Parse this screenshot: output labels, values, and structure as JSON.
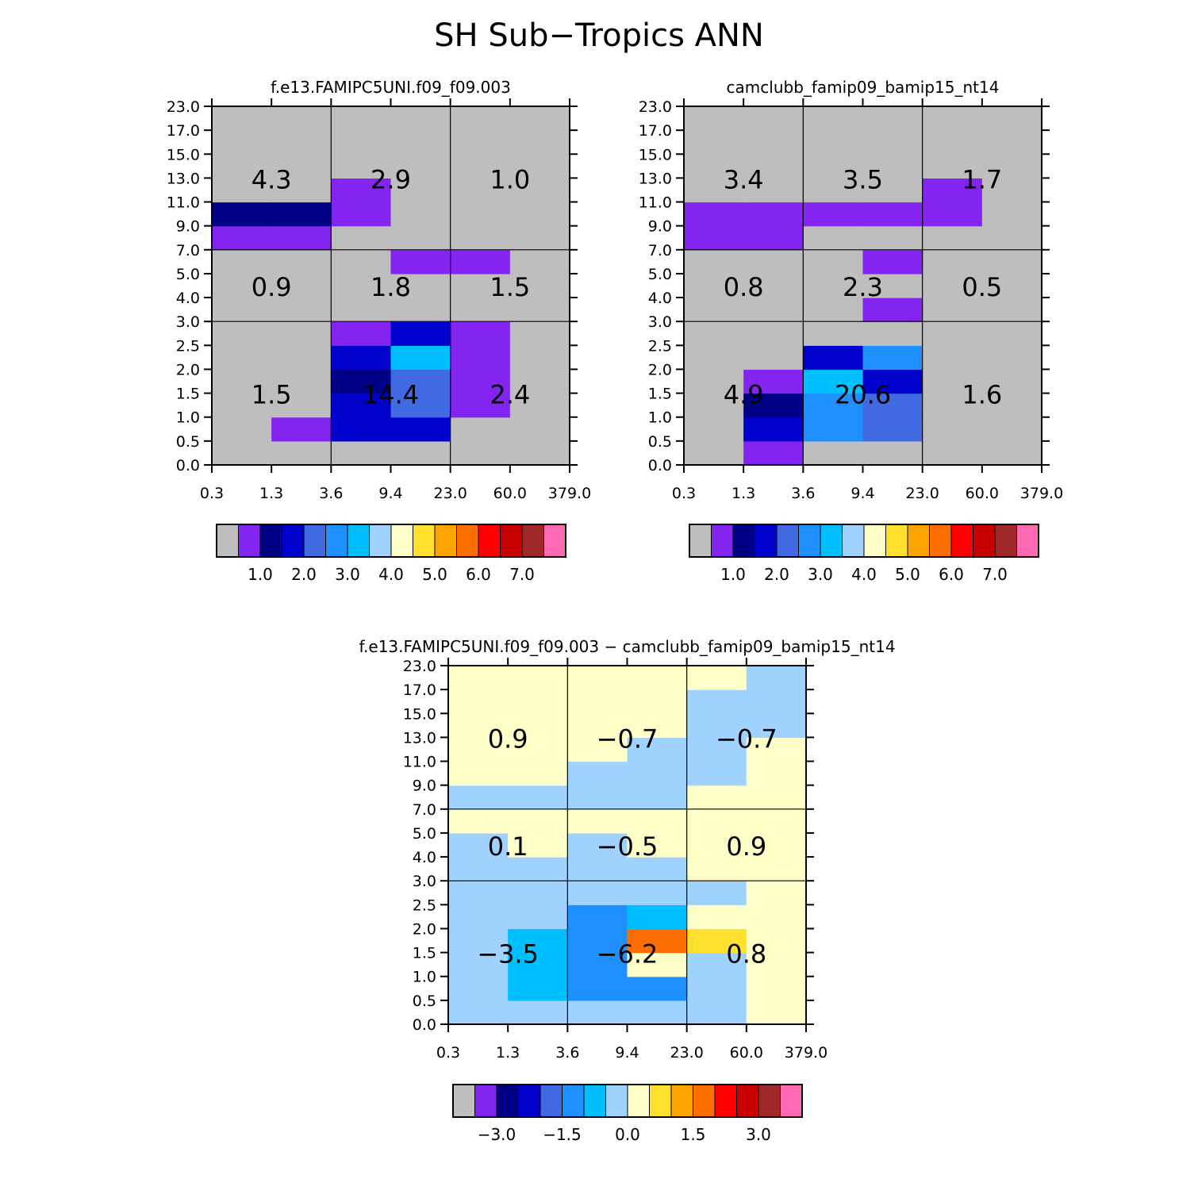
{
  "title": "SH Sub−Tropics ANN",
  "palette": [
    "#bebebe",
    "#8424f0",
    "#000087",
    "#0000cd",
    "#4169e1",
    "#1e90ff",
    "#00bfff",
    "#a0d2ff",
    "#ffffc8",
    "#ffe12d",
    "#ffa500",
    "#ff6e00",
    "#ff0000",
    "#c80000",
    "#a02828",
    "#ff69b4"
  ],
  "x_ticks": [
    "0.3",
    "1.3",
    "3.6",
    "9.4",
    "23.0",
    "60.0",
    "379.0"
  ],
  "y_ticks": [
    "0.0",
    "0.5",
    "1.0",
    "1.5",
    "2.0",
    "2.5",
    "3.0",
    "4.0",
    "5.0",
    "7.0",
    "9.0",
    "11.0",
    "13.0",
    "15.0",
    "17.0",
    "23.0"
  ],
  "chart_data": [
    {
      "type": "heatmap",
      "title": "f.e13.FAMIPC5UNI.f09_f09.003",
      "x_bins": [
        "0.3",
        "1.3",
        "3.6",
        "9.4",
        "23.0",
        "60.0",
        "379.0"
      ],
      "y_bins": [
        "0.0",
        "0.5",
        "1.0",
        "1.5",
        "2.0",
        "2.5",
        "3.0",
        "4.0",
        "5.0",
        "7.0",
        "9.0",
        "11.0",
        "13.0",
        "15.0",
        "17.0",
        "23.0"
      ],
      "levels": [
        "0.5",
        "1.0",
        "1.5",
        "2.0",
        "2.5",
        "3.0",
        "3.5",
        "4.0",
        "4.5",
        "5.0",
        "5.5",
        "6.0",
        "6.5",
        "7.0"
      ],
      "colorbar_labels": [
        "1.0",
        "2.0",
        "3.0",
        "4.0",
        "5.0",
        "6.0",
        "7.0"
      ],
      "grid": [
        [
          0,
          0,
          0,
          0,
          0,
          0
        ],
        [
          0,
          1,
          3,
          3,
          0,
          0
        ],
        [
          0,
          0,
          3,
          4,
          1,
          0
        ],
        [
          0,
          0,
          2,
          4,
          1,
          0
        ],
        [
          0,
          0,
          3,
          6,
          1,
          0
        ],
        [
          0,
          0,
          1,
          3,
          1,
          0
        ],
        [
          0,
          0,
          0,
          0,
          0,
          0
        ],
        [
          0,
          0,
          0,
          0,
          0,
          0
        ],
        [
          0,
          0,
          0,
          1,
          1,
          0
        ],
        [
          1,
          1,
          0,
          0,
          0,
          0
        ],
        [
          2,
          2,
          1,
          0,
          0,
          0
        ],
        [
          0,
          0,
          1,
          0,
          0,
          0
        ],
        [
          0,
          0,
          0,
          0,
          0,
          0
        ],
        [
          0,
          0,
          0,
          0,
          0,
          0
        ],
        [
          0,
          0,
          0,
          0,
          0,
          0
        ]
      ],
      "box_totals": {
        "high": [
          "4.3",
          "2.9",
          "1.0"
        ],
        "mid": [
          "0.9",
          "1.8",
          "1.5"
        ],
        "low": [
          "1.5",
          "14.4",
          "2.4"
        ]
      }
    },
    {
      "type": "heatmap",
      "title": "camclubb_famip09_bamip15_nt14",
      "x_bins": [
        "0.3",
        "1.3",
        "3.6",
        "9.4",
        "23.0",
        "60.0",
        "379.0"
      ],
      "y_bins": [
        "0.0",
        "0.5",
        "1.0",
        "1.5",
        "2.0",
        "2.5",
        "3.0",
        "4.0",
        "5.0",
        "7.0",
        "9.0",
        "11.0",
        "13.0",
        "15.0",
        "17.0",
        "23.0"
      ],
      "levels": [
        "0.5",
        "1.0",
        "1.5",
        "2.0",
        "2.5",
        "3.0",
        "3.5",
        "4.0",
        "4.5",
        "5.0",
        "5.5",
        "6.0",
        "6.5",
        "7.0"
      ],
      "colorbar_labels": [
        "1.0",
        "2.0",
        "3.0",
        "4.0",
        "5.0",
        "6.0",
        "7.0"
      ],
      "grid": [
        [
          0,
          1,
          0,
          0,
          0,
          0
        ],
        [
          0,
          3,
          5,
          4,
          0,
          0
        ],
        [
          0,
          2,
          5,
          4,
          0,
          0
        ],
        [
          0,
          1,
          6,
          3,
          0,
          0
        ],
        [
          0,
          0,
          3,
          5,
          0,
          0
        ],
        [
          0,
          0,
          0,
          0,
          0,
          0
        ],
        [
          0,
          0,
          0,
          1,
          0,
          0
        ],
        [
          0,
          0,
          0,
          0,
          0,
          0
        ],
        [
          0,
          0,
          0,
          1,
          0,
          0
        ],
        [
          1,
          1,
          0,
          0,
          0,
          0
        ],
        [
          1,
          1,
          1,
          1,
          1,
          0
        ],
        [
          0,
          0,
          0,
          0,
          1,
          0
        ],
        [
          0,
          0,
          0,
          0,
          0,
          0
        ],
        [
          0,
          0,
          0,
          0,
          0,
          0
        ],
        [
          0,
          0,
          0,
          0,
          0,
          0
        ]
      ],
      "box_totals": {
        "high": [
          "3.4",
          "3.5",
          "1.7"
        ],
        "mid": [
          "0.8",
          "2.3",
          "0.5"
        ],
        "low": [
          "4.9",
          "20.6",
          "1.6"
        ]
      }
    },
    {
      "type": "heatmap",
      "title": "f.e13.FAMIPC5UNI.f09_f09.003 − camclubb_famip09_bamip15_nt14",
      "x_bins": [
        "0.3",
        "1.3",
        "3.6",
        "9.4",
        "23.0",
        "60.0",
        "379.0"
      ],
      "y_bins": [
        "0.0",
        "0.5",
        "1.0",
        "1.5",
        "2.0",
        "2.5",
        "3.0",
        "4.0",
        "5.0",
        "7.0",
        "9.0",
        "11.0",
        "13.0",
        "15.0",
        "17.0",
        "23.0"
      ],
      "levels": [
        "-3.5",
        "-3.0",
        "-2.5",
        "-2.0",
        "-1.5",
        "-1.0",
        "-0.5",
        "0.0",
        "0.5",
        "1.0",
        "1.5",
        "2.0",
        "2.5",
        "3.0"
      ],
      "colorbar_labels": [
        "−3.0",
        "−1.5",
        "0.0",
        "1.5",
        "3.0"
      ],
      "grid": [
        [
          7,
          7,
          7,
          7,
          7,
          8
        ],
        [
          7,
          6,
          5,
          5,
          7,
          8
        ],
        [
          7,
          6,
          5,
          8,
          7,
          8
        ],
        [
          7,
          6,
          5,
          11,
          9,
          8
        ],
        [
          7,
          7,
          5,
          6,
          8,
          8
        ],
        [
          7,
          7,
          7,
          7,
          7,
          8
        ],
        [
          7,
          7,
          7,
          7,
          8,
          8
        ],
        [
          7,
          8,
          7,
          8,
          8,
          8
        ],
        [
          8,
          8,
          8,
          8,
          8,
          8
        ],
        [
          7,
          7,
          7,
          7,
          8,
          8
        ],
        [
          8,
          8,
          7,
          7,
          7,
          8
        ],
        [
          8,
          8,
          8,
          7,
          7,
          8
        ],
        [
          8,
          8,
          8,
          8,
          7,
          7
        ],
        [
          8,
          8,
          8,
          8,
          7,
          7
        ],
        [
          8,
          8,
          8,
          8,
          8,
          7
        ]
      ],
      "box_totals": {
        "high": [
          "0.9",
          "−0.7",
          "−0.7"
        ],
        "mid": [
          "0.1",
          "−0.5",
          "0.9"
        ],
        "low": [
          "−3.5",
          "−6.2",
          "0.8"
        ]
      }
    }
  ]
}
